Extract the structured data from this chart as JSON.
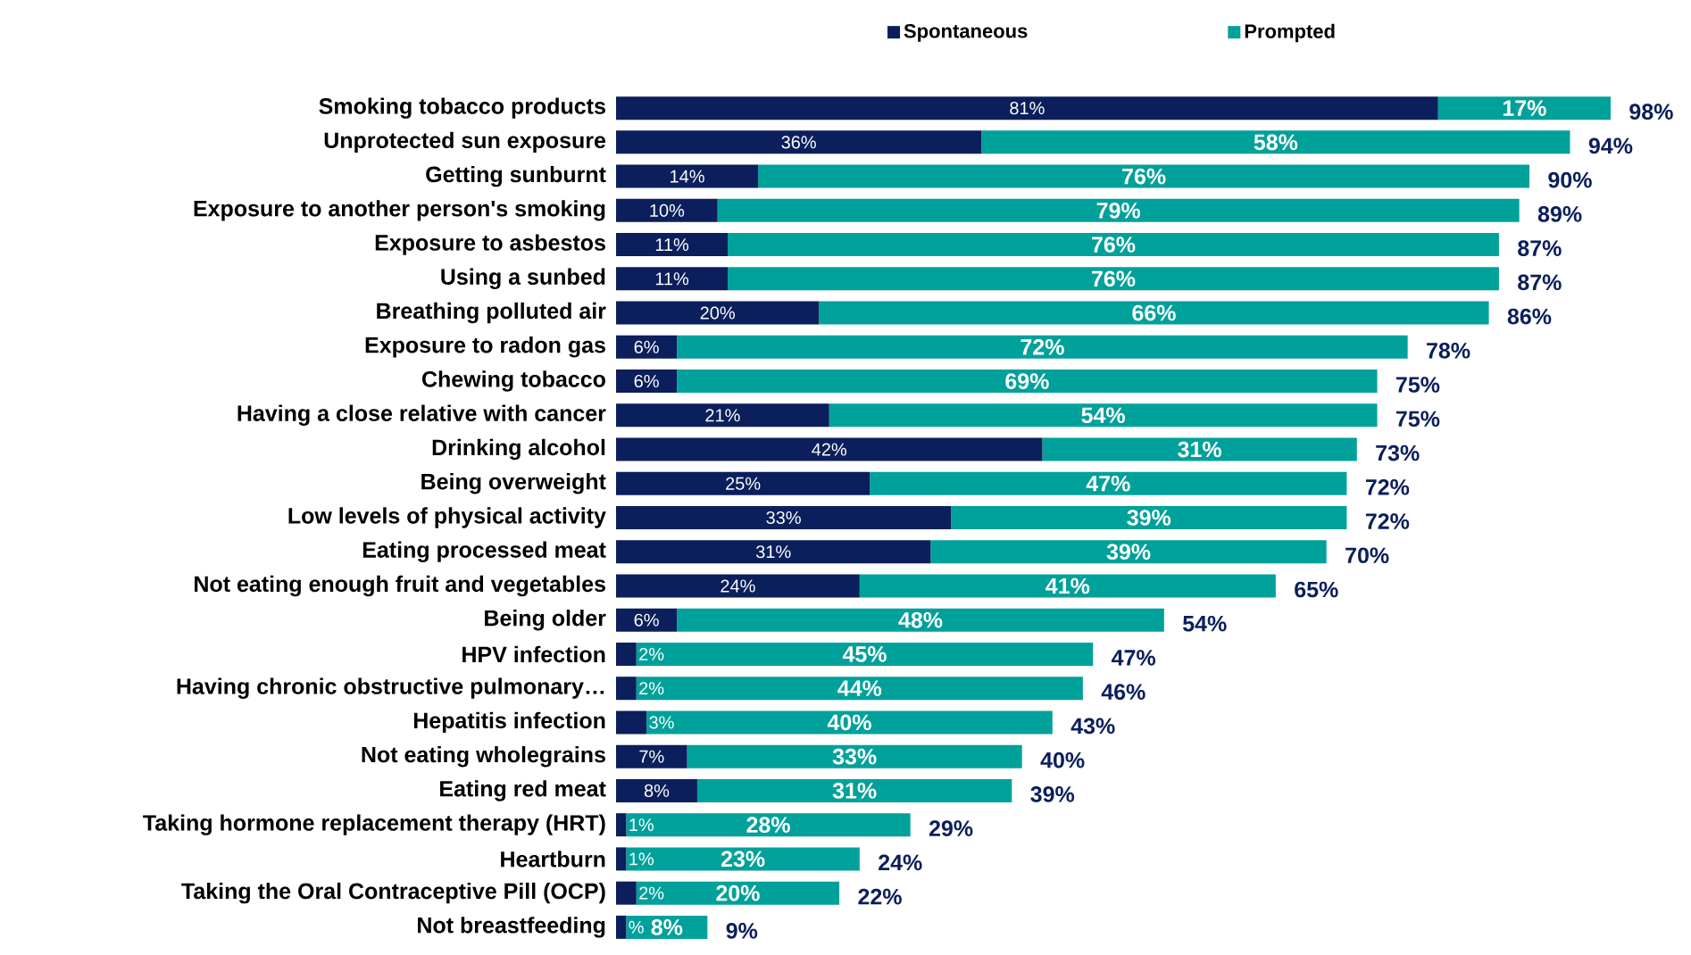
{
  "chart_data": {
    "type": "bar",
    "orientation": "horizontal",
    "stacked": true,
    "legend": "top",
    "categories": [
      "Smoking tobacco products",
      "Unprotected sun exposure",
      "Getting sunburnt",
      "Exposure to another person's smoking",
      "Exposure to asbestos",
      "Using a sunbed",
      "Breathing polluted air",
      "Exposure to radon gas",
      "Chewing tobacco",
      "Having a close relative with cancer",
      "Drinking alcohol",
      "Being overweight",
      "Low levels of physical activity",
      "Eating processed meat",
      "Not eating enough fruit and vegetables",
      "Being older",
      "HPV infection",
      "Having chronic obstructive pulmonary…",
      "Hepatitis infection",
      "Not eating wholegrains",
      "Eating red meat",
      "Taking hormone replacement therapy (HRT)",
      "Heartburn",
      "Taking the Oral Contraceptive Pill (OCP)",
      "Not breastfeeding"
    ],
    "series": [
      {
        "name": "Spontaneous",
        "color": "#0b1f5c",
        "values": [
          81,
          36,
          14,
          10,
          11,
          11,
          20,
          6,
          6,
          21,
          42,
          25,
          33,
          31,
          24,
          6,
          2,
          2,
          3,
          7,
          8,
          1,
          1,
          2,
          1
        ],
        "value_labels": [
          "81%",
          "36%",
          "14%",
          "10%",
          "11%",
          "11%",
          "20%",
          "6%",
          "6%",
          "21%",
          "42%",
          "25%",
          "33%",
          "31%",
          "24%",
          "6%",
          "2%",
          "2%",
          "3%",
          "7%",
          "8%",
          "1%",
          "1%",
          "2%",
          "%"
        ]
      },
      {
        "name": "Prompted",
        "color": "#00a19a",
        "values": [
          17,
          58,
          76,
          79,
          76,
          76,
          66,
          72,
          69,
          54,
          31,
          47,
          39,
          39,
          41,
          48,
          45,
          44,
          40,
          33,
          31,
          28,
          23,
          20,
          8
        ],
        "value_labels": [
          "17%",
          "58%",
          "76%",
          "79%",
          "76%",
          "76%",
          "66%",
          "72%",
          "69%",
          "54%",
          "31%",
          "47%",
          "39%",
          "39%",
          "41%",
          "48%",
          "45%",
          "44%",
          "40%",
          "33%",
          "31%",
          "28%",
          "23%",
          "20%",
          "8%"
        ]
      }
    ],
    "totals": [
      "98%",
      "94%",
      "90%",
      "89%",
      "87%",
      "87%",
      "86%",
      "78%",
      "75%",
      "75%",
      "73%",
      "72%",
      "72%",
      "70%",
      "65%",
      "54%",
      "47%",
      "46%",
      "43%",
      "40%",
      "39%",
      "29%",
      "24%",
      "22%",
      "9%"
    ]
  }
}
